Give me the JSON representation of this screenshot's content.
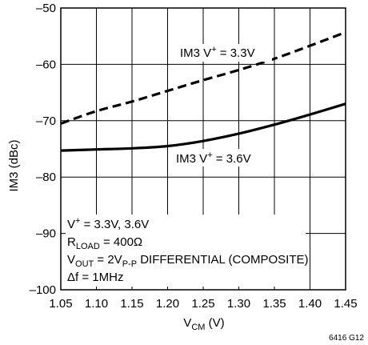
{
  "chart_data": {
    "type": "line",
    "xlabel": {
      "main": "V",
      "sub": "CM",
      "unit": " (V)"
    },
    "ylabel": "IM3 (dBc)",
    "xlim": [
      1.05,
      1.45
    ],
    "ylim": [
      -100,
      -50
    ],
    "xticks": [
      "1.05",
      "1.10",
      "1.15",
      "1.20",
      "1.25",
      "1.30",
      "1.35",
      "1.40",
      "1.45"
    ],
    "yticks": [
      "–50",
      "–60",
      "–70",
      "–80",
      "–90",
      "–100"
    ],
    "grid": true,
    "series": [
      {
        "name": "IM3 V+ = 3.3V",
        "style": "dashed",
        "x": [
          1.05,
          1.1,
          1.15,
          1.2,
          1.25,
          1.3,
          1.35,
          1.4,
          1.45
        ],
        "y": [
          -70.5,
          -68.3,
          -66.6,
          -64.7,
          -62.8,
          -61.0,
          -59.0,
          -56.7,
          -54.3
        ]
      },
      {
        "name": "IM3 V+ = 3.6V",
        "style": "solid",
        "x": [
          1.05,
          1.1,
          1.15,
          1.2,
          1.25,
          1.3,
          1.35,
          1.4,
          1.45
        ],
        "y": [
          -75.3,
          -75.1,
          -74.9,
          -74.5,
          -73.6,
          -72.3,
          -70.7,
          -68.9,
          -67.0
        ]
      }
    ],
    "labels": [
      {
        "prefix": "IM3 V",
        "sup": "+",
        "suffix": " = 3.3V"
      },
      {
        "prefix": "IM3 V",
        "sup": "+",
        "suffix": " = 3.6V"
      }
    ],
    "conditions": {
      "line1": {
        "prefix": "V",
        "sup": "+",
        "suffix": " = 3.3V, 3.6V"
      },
      "line2": {
        "prefix": "R",
        "sub": "LOAD",
        "suffix": " = 400Ω"
      },
      "line3": {
        "prefix": "V",
        "sub": "OUT",
        "mid": " = 2V",
        "sub2": "P-P",
        "suffix": " DIFFERENTIAL (COMPOSITE)"
      },
      "line4": "Δf = 1MHz"
    },
    "figure_code": "6416 G12"
  }
}
